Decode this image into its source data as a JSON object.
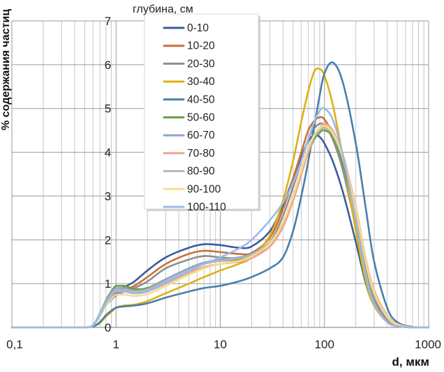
{
  "chart_data": {
    "type": "line",
    "title": "",
    "xlabel": "d, мкм",
    "ylabel": "% содержания частиц",
    "legend_title": "глубина, см",
    "legend_position": "top-left",
    "x_scale": "log",
    "xlim": [
      0.1,
      1000
    ],
    "ylim": [
      0,
      7
    ],
    "x_ticks": [
      "0,1",
      "1",
      "10",
      "100",
      "1000"
    ],
    "y_ticks": [
      "0",
      "1",
      "2",
      "3",
      "4",
      "5",
      "6",
      "7"
    ],
    "grid": "minor log vertical gridlines, horizontal gridlines at each integer",
    "x": [
      0.1,
      0.3,
      0.5,
      0.6,
      0.7,
      0.8,
      0.9,
      1,
      1.2,
      1.5,
      2,
      3,
      5,
      7,
      10,
      15,
      20,
      30,
      40,
      50,
      60,
      70,
      80,
      90,
      100,
      120,
      150,
      200,
      250,
      300,
      400,
      500,
      700,
      1000
    ],
    "series": [
      {
        "name": "0-10",
        "color": "#3A5D9C",
        "values": [
          0,
          0,
          0,
          0.05,
          0.3,
          0.55,
          0.7,
          0.8,
          0.92,
          1.05,
          1.3,
          1.6,
          1.82,
          1.9,
          1.88,
          1.82,
          1.85,
          2.2,
          2.8,
          3.4,
          3.9,
          4.25,
          4.4,
          4.35,
          4.2,
          3.8,
          3.1,
          1.95,
          1.0,
          0.5,
          0.12,
          0.03,
          0,
          0
        ]
      },
      {
        "name": "10-20",
        "color": "#C8703A",
        "values": [
          0,
          0,
          0,
          0.05,
          0.28,
          0.52,
          0.65,
          0.75,
          0.86,
          0.95,
          1.15,
          1.45,
          1.68,
          1.75,
          1.72,
          1.68,
          1.7,
          2.05,
          2.7,
          3.4,
          4.0,
          4.5,
          4.72,
          4.8,
          4.75,
          4.4,
          3.6,
          2.3,
          1.2,
          0.6,
          0.15,
          0.04,
          0,
          0
        ]
      },
      {
        "name": "20-30",
        "color": "#8F8F8F",
        "values": [
          0,
          0,
          0,
          0.05,
          0.28,
          0.5,
          0.63,
          0.73,
          0.82,
          0.9,
          1.05,
          1.35,
          1.55,
          1.63,
          1.6,
          1.57,
          1.6,
          1.95,
          2.55,
          3.2,
          3.8,
          4.3,
          4.55,
          4.65,
          4.62,
          4.3,
          3.6,
          2.35,
          1.25,
          0.65,
          0.18,
          0.05,
          0,
          0
        ]
      },
      {
        "name": "30-40",
        "color": "#E0B010",
        "values": [
          0,
          0,
          0,
          0.02,
          0.1,
          0.25,
          0.35,
          0.45,
          0.5,
          0.52,
          0.6,
          0.78,
          1.0,
          1.15,
          1.3,
          1.45,
          1.6,
          2.1,
          2.9,
          3.8,
          4.7,
          5.4,
          5.85,
          5.9,
          5.75,
          5.1,
          3.9,
          2.2,
          1.05,
          0.5,
          0.12,
          0.03,
          0,
          0
        ]
      },
      {
        "name": "40-50",
        "color": "#4A7FA8",
        "values": [
          0,
          0,
          0,
          0.02,
          0.12,
          0.28,
          0.38,
          0.45,
          0.48,
          0.5,
          0.55,
          0.68,
          0.82,
          0.9,
          0.95,
          1.05,
          1.15,
          1.35,
          1.6,
          2.2,
          3.0,
          3.8,
          4.6,
          5.3,
          5.8,
          6.05,
          5.6,
          4.2,
          2.7,
          1.5,
          0.45,
          0.12,
          0.01,
          0
        ]
      },
      {
        "name": "50-60",
        "color": "#6A9E3E",
        "values": [
          0,
          0,
          0,
          0.05,
          0.32,
          0.62,
          0.82,
          0.95,
          0.95,
          0.88,
          0.9,
          1.1,
          1.35,
          1.48,
          1.52,
          1.55,
          1.6,
          1.85,
          2.3,
          2.9,
          3.5,
          4.0,
          4.3,
          4.45,
          4.5,
          4.35,
          3.75,
          2.55,
          1.4,
          0.75,
          0.22,
          0.06,
          0,
          0
        ]
      },
      {
        "name": "60-70",
        "color": "#8FA3D0",
        "values": [
          0,
          0,
          0,
          0.05,
          0.32,
          0.6,
          0.78,
          0.9,
          0.9,
          0.84,
          0.88,
          1.1,
          1.35,
          1.48,
          1.55,
          1.6,
          1.68,
          1.95,
          2.4,
          3.0,
          3.6,
          4.1,
          4.4,
          4.55,
          4.58,
          4.45,
          3.9,
          2.7,
          1.5,
          0.8,
          0.25,
          0.07,
          0,
          0
        ]
      },
      {
        "name": "70-80",
        "color": "#F2A48A",
        "values": [
          0,
          0,
          0,
          0.04,
          0.28,
          0.55,
          0.72,
          0.82,
          0.82,
          0.78,
          0.82,
          1.0,
          1.25,
          1.38,
          1.45,
          1.5,
          1.58,
          1.85,
          2.3,
          2.9,
          3.5,
          4.0,
          4.35,
          4.55,
          4.65,
          4.5,
          3.95,
          2.75,
          1.55,
          0.85,
          0.28,
          0.08,
          0,
          0
        ]
      },
      {
        "name": "80-90",
        "color": "#B8B8B8",
        "values": [
          0,
          0,
          0,
          0.05,
          0.3,
          0.58,
          0.75,
          0.86,
          0.86,
          0.82,
          0.86,
          1.05,
          1.3,
          1.45,
          1.52,
          1.58,
          1.66,
          1.95,
          2.4,
          3.0,
          3.6,
          4.05,
          4.35,
          4.5,
          4.55,
          4.4,
          3.85,
          2.65,
          1.45,
          0.75,
          0.22,
          0.06,
          0,
          0
        ]
      },
      {
        "name": "90-100",
        "color": "#F7DC8C",
        "values": [
          0,
          0,
          0,
          0.04,
          0.26,
          0.5,
          0.65,
          0.75,
          0.75,
          0.72,
          0.76,
          0.95,
          1.2,
          1.35,
          1.45,
          1.52,
          1.62,
          1.92,
          2.4,
          3.0,
          3.6,
          4.1,
          4.4,
          4.55,
          4.6,
          4.45,
          3.9,
          2.7,
          1.5,
          0.8,
          0.25,
          0.07,
          0,
          0
        ]
      },
      {
        "name": "100-110",
        "color": "#9DB9E6",
        "values": [
          0,
          0,
          0,
          0.04,
          0.28,
          0.55,
          0.72,
          0.82,
          0.82,
          0.78,
          0.82,
          1.02,
          1.28,
          1.45,
          1.6,
          1.8,
          2.0,
          2.45,
          2.85,
          3.3,
          3.8,
          4.3,
          4.7,
          4.95,
          5.0,
          4.75,
          3.95,
          2.45,
          1.2,
          0.55,
          0.12,
          0.03,
          0,
          0
        ]
      }
    ]
  }
}
